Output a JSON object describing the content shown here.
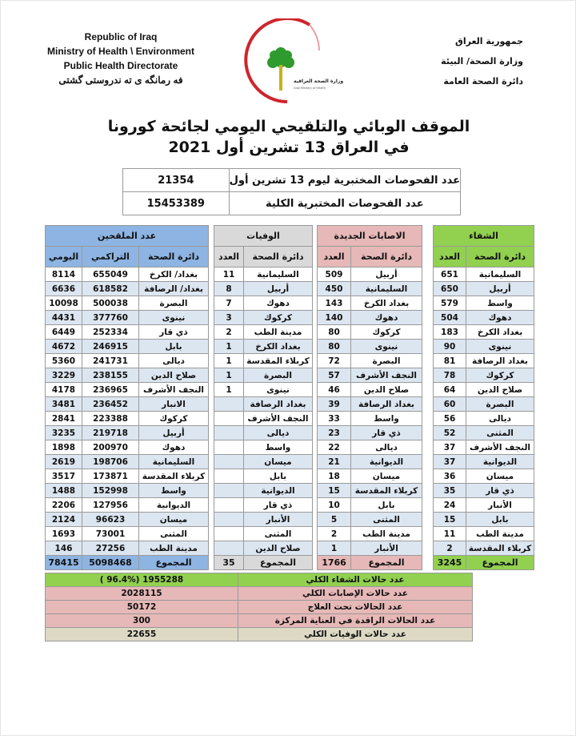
{
  "header": {
    "en_lines": [
      "Republic of Iraq",
      "Ministry of Health \\ Environment",
      "Public Health Directorate",
      "فه رمانگه ى ته ندروستى گشتى"
    ],
    "ar_lines": [
      "جمهورية العراق",
      "وزارة الصحة/ البيئة",
      "دائرة الصحة العامة"
    ],
    "logo_text": "وزارة الصحة العراقية - Iraqi Ministry of Health"
  },
  "title": {
    "line1": "الموقف الوبائي والتلقيحي اليومي لجائحة كورونا",
    "line2": "في العراق  13  تشرين أول 2021"
  },
  "tests": [
    {
      "label": "عدد الفحوصات المختبرية  ليوم 13 تشرين أول",
      "value": "21354"
    },
    {
      "label": "عدد الفحوصات المختبرية الكلية",
      "value": "15453389"
    }
  ],
  "colors": {
    "recovery": "#92d050",
    "infections": "#e6b8b7",
    "deaths": "#d9d9d9",
    "vaccinated": "#8db4e2",
    "alt_row": "#dce6f1",
    "bottom_deaths": "#ddd9c4"
  },
  "recovery": {
    "title": "الشفاء",
    "col_name": "دائرة الصحة",
    "col_count": "العدد",
    "rows": [
      [
        "السليمانية",
        "651"
      ],
      [
        "أربيل",
        "650"
      ],
      [
        "واسط",
        "579"
      ],
      [
        "دهوك",
        "504"
      ],
      [
        "بغداد الكرخ",
        "183"
      ],
      [
        "نينوى",
        "90"
      ],
      [
        "بغداد الرصافة",
        "81"
      ],
      [
        "كركوك",
        "78"
      ],
      [
        "صلاح الدين",
        "64"
      ],
      [
        "البصرة",
        "60"
      ],
      [
        "ديالى",
        "56"
      ],
      [
        "المثنى",
        "52"
      ],
      [
        "النجف الأشرف",
        "37"
      ],
      [
        "الديوانية",
        "37"
      ],
      [
        "ميسان",
        "36"
      ],
      [
        "ذي قار",
        "35"
      ],
      [
        "الأنبار",
        "24"
      ],
      [
        "بابل",
        "15"
      ],
      [
        "مدينة الطب",
        "11"
      ],
      [
        "كربلاء المقدسة",
        "2"
      ]
    ],
    "total_label": "المجموع",
    "total": "3245"
  },
  "infections": {
    "title": "الاصابات الجديدة",
    "col_name": "دائرة الصحة",
    "col_count": "العدد",
    "rows": [
      [
        "أربيل",
        "509"
      ],
      [
        "السليمانية",
        "450"
      ],
      [
        "بغداد الكرخ",
        "143"
      ],
      [
        "دهوك",
        "140"
      ],
      [
        "كركوك",
        "80"
      ],
      [
        "نينوى",
        "80"
      ],
      [
        "البصرة",
        "72"
      ],
      [
        "النجف الأشرف",
        "57"
      ],
      [
        "صلاح الدين",
        "46"
      ],
      [
        "بغداد الرصافة",
        "39"
      ],
      [
        "واسط",
        "33"
      ],
      [
        "ذي قار",
        "23"
      ],
      [
        "ديالى",
        "22"
      ],
      [
        "الديوانية",
        "21"
      ],
      [
        "ميسان",
        "18"
      ],
      [
        "كربلاء المقدسة",
        "15"
      ],
      [
        "بابل",
        "10"
      ],
      [
        "المثنى",
        "5"
      ],
      [
        "مدينة الطب",
        "2"
      ],
      [
        "الأنبار",
        "1"
      ]
    ],
    "total_label": "المجموع",
    "total": "1766"
  },
  "deaths": {
    "title": "الوفيات",
    "col_name": "دائرة الصحة",
    "col_count": "العدد",
    "rows": [
      [
        "السليمانية",
        "11"
      ],
      [
        "أربيل",
        "8"
      ],
      [
        "دهوك",
        "7"
      ],
      [
        "كركوك",
        "3"
      ],
      [
        "مدينة الطب",
        "2"
      ],
      [
        "بغداد الكرخ",
        "1"
      ],
      [
        "كربلاء المقدسة",
        "1"
      ],
      [
        "البصرة",
        "1"
      ],
      [
        "نينوى",
        "1"
      ],
      [
        "بغداد الرصافة",
        ""
      ],
      [
        "النجف الأشرف",
        ""
      ],
      [
        "ديالى",
        ""
      ],
      [
        "واسط",
        ""
      ],
      [
        "ميسان",
        ""
      ],
      [
        "بابل",
        ""
      ],
      [
        "الديوانية",
        ""
      ],
      [
        "ذي قار",
        ""
      ],
      [
        "الأنبار",
        ""
      ],
      [
        "المثنى",
        ""
      ],
      [
        "صلاح الدين",
        ""
      ]
    ],
    "total_label": "المجموع",
    "total": "35"
  },
  "vaccinated": {
    "title": "عدد الملقحين",
    "col_name": "دائرة الصحة",
    "col_cumulative": "التراكمي",
    "col_daily": "اليومي",
    "rows": [
      [
        "بغداد/ الكرخ",
        "655049",
        "8114"
      ],
      [
        "بغداد/ الرصافة",
        "618582",
        "6636"
      ],
      [
        "البصرة",
        "500038",
        "10098"
      ],
      [
        "نينوى",
        "377760",
        "4431"
      ],
      [
        "ذي قار",
        "252334",
        "6449"
      ],
      [
        "بابل",
        "246915",
        "4672"
      ],
      [
        "ديالى",
        "241731",
        "5360"
      ],
      [
        "صلاح الدين",
        "238155",
        "3229"
      ],
      [
        "النجف الأشرف",
        "236965",
        "4178"
      ],
      [
        "الانبار",
        "236452",
        "3481"
      ],
      [
        "كركوك",
        "223388",
        "2841"
      ],
      [
        "أربيل",
        "219718",
        "3235"
      ],
      [
        "دهوك",
        "200970",
        "1898"
      ],
      [
        "السليمانية",
        "198706",
        "2619"
      ],
      [
        "كربلاء المقدسة",
        "173871",
        "3517"
      ],
      [
        "واسط",
        "152998",
        "1488"
      ],
      [
        "الديوانية",
        "127956",
        "2206"
      ],
      [
        "ميسان",
        "96623",
        "2124"
      ],
      [
        "المثنى",
        "73001",
        "1693"
      ],
      [
        "مدينة الطب",
        "27256",
        "146"
      ]
    ],
    "total_label": "المجموع",
    "total_cumulative": "5098468",
    "total_daily": "78415"
  },
  "summary": [
    {
      "label": "عدد حالات الشفاء الكلي",
      "value": "( 96.4%)  1955288",
      "color": "#92d050"
    },
    {
      "label": "عدد حالات الإصابات الكلي",
      "value": "2028115",
      "color": "#e6b8b7"
    },
    {
      "label": "عدد الحالات تحت العلاج",
      "value": "50172",
      "color": "#e6b8b7"
    },
    {
      "label": "عدد الحالات الراقدة في العناية المركزة",
      "value": "300",
      "color": "#e6b8b7"
    },
    {
      "label": "عدد حالات الوفيات الكلي",
      "value": "22655",
      "color": "#ddd9c4"
    }
  ]
}
